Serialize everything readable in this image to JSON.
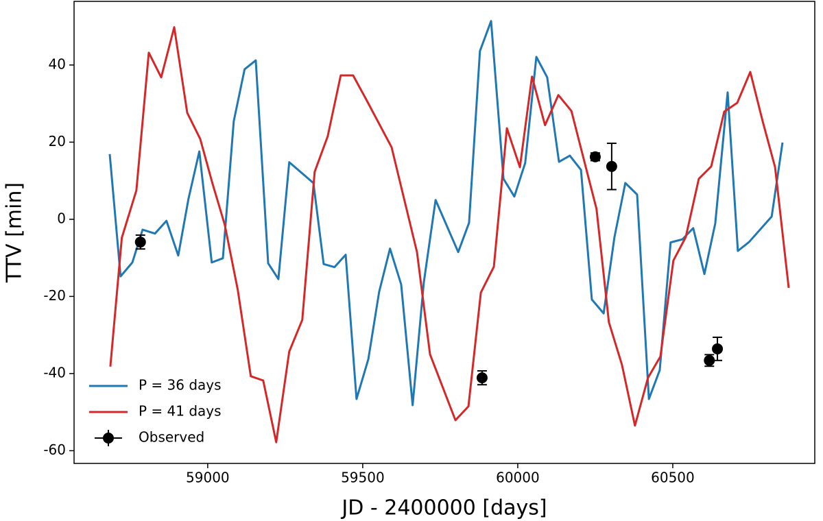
{
  "chart_data": {
    "type": "line",
    "xlabel": "JD - 2400000 [days]",
    "ylabel": "TTV [min]",
    "xlim": [
      58569,
      60958
    ],
    "ylim": [
      -63.3,
      56.5
    ],
    "xticks": [
      59000,
      59500,
      60000,
      60500
    ],
    "yticks": [
      -60,
      -40,
      -20,
      0,
      20,
      40
    ],
    "legend": "lower left",
    "series": [
      {
        "name": "P = 36 days",
        "color": "#1f77b4",
        "kind": "line",
        "x": [
          58684,
          58719,
          58757,
          58790,
          58830,
          58867,
          58905,
          58938,
          58973,
          59013,
          59049,
          59084,
          59119,
          59155,
          59195,
          59228,
          59263,
          59341,
          59374,
          59409,
          59445,
          59480,
          59518,
          59553,
          59588,
          59624,
          59661,
          59697,
          59735,
          59808,
          59843,
          59878,
          59914,
          59954,
          59989,
          60024,
          60060,
          60095,
          60133,
          60168,
          60204,
          60239,
          60277,
          60312,
          60347,
          60385,
          60423,
          60458,
          60493,
          60531,
          60566,
          60602,
          60637,
          60677,
          60710,
          60746,
          60819,
          60854
        ],
        "values": [
          16.9,
          -14.8,
          -11.2,
          -2.7,
          -3.7,
          -0.4,
          -9.4,
          5.3,
          17.6,
          -11.2,
          -10.1,
          25.4,
          38.9,
          41.2,
          -11.4,
          -15.5,
          14.8,
          9.4,
          -11.6,
          -12.4,
          -9.2,
          -46.6,
          -36.3,
          -18.8,
          -7.6,
          -16.9,
          -48.2,
          -16.4,
          5.0,
          -8.5,
          -0.9,
          43.6,
          51.4,
          10.5,
          5.9,
          14.6,
          42.1,
          36.8,
          14.9,
          16.5,
          12.8,
          -20.8,
          -24.4,
          -4.6,
          9.4,
          6.4,
          -46.6,
          -39.1,
          -6.0,
          -5.2,
          -2.3,
          -14.2,
          -1.1,
          32.9,
          -8.2,
          -5.9,
          0.7,
          19.9
        ]
      },
      {
        "name": "P = 41 days",
        "color": "#d62728",
        "kind": "line",
        "x": [
          58686,
          58723,
          58770,
          58810,
          58850,
          58892,
          58934,
          58976,
          59015,
          59055,
          59097,
          59139,
          59179,
          59221,
          59263,
          59305,
          59345,
          59387,
          59429,
          59469,
          59511,
          59593,
          59675,
          59717,
          59799,
          59841,
          59881,
          59923,
          59965,
          60007,
          60046,
          60088,
          60131,
          60173,
          60254,
          60294,
          60336,
          60378,
          60420,
          60460,
          60502,
          60542,
          60584,
          60624,
          60666,
          60708,
          60750,
          60790,
          60830,
          60874
        ],
        "values": [
          -38.2,
          -4.8,
          7.5,
          43.2,
          36.8,
          49.8,
          27.6,
          20.8,
          9.4,
          -1.4,
          -18.3,
          -40.7,
          -41.8,
          -57.8,
          -34.3,
          -26.1,
          12.3,
          21.5,
          37.3,
          37.3,
          31.1,
          18.7,
          -8.5,
          -35.0,
          -52.1,
          -48.5,
          -19.0,
          -12.3,
          23.6,
          13.5,
          37.0,
          24.4,
          32.2,
          28.1,
          2.7,
          -26.7,
          -37.7,
          -53.5,
          -41.1,
          -35.6,
          -10.7,
          -4.6,
          10.5,
          13.7,
          27.9,
          30.2,
          38.2,
          25.4,
          13.5,
          -17.8
        ]
      },
      {
        "name": "Observed",
        "color": "#000000",
        "kind": "errorbar",
        "x": [
          58783,
          59885,
          60250,
          60303,
          60618,
          60644
        ],
        "values": [
          -5.9,
          -41.1,
          16.2,
          13.7,
          -36.6,
          -33.6
        ],
        "yerr": [
          1.8,
          1.8,
          1.0,
          6.0,
          1.5,
          3.0
        ]
      }
    ]
  }
}
